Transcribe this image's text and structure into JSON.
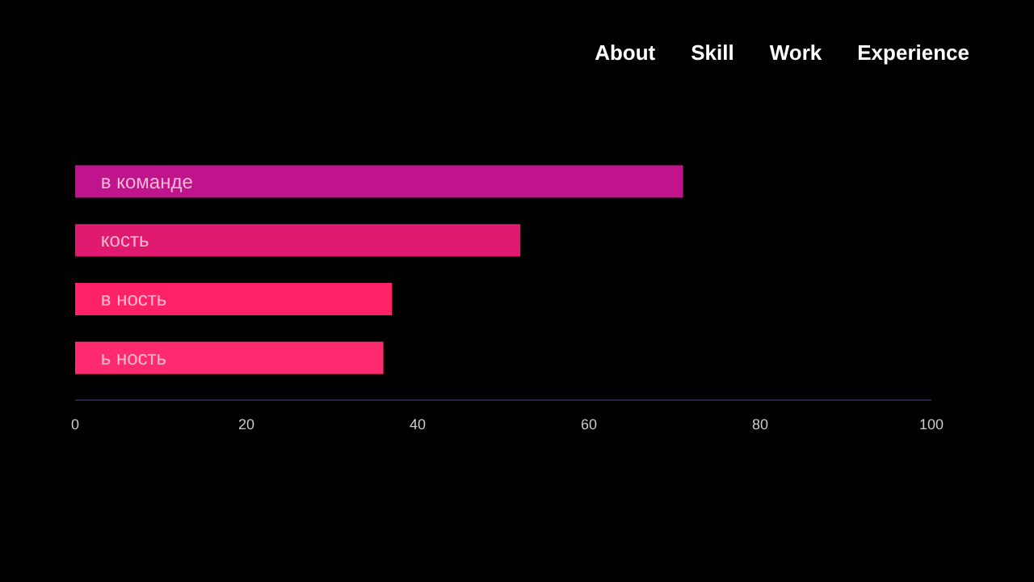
{
  "chart_data": {
    "type": "bar",
    "orientation": "horizontal",
    "categories": [
      "в   команде",
      "кость",
      "в ность",
      "ь ность"
    ],
    "values": [
      71,
      52,
      37,
      36
    ],
    "colors": [
      "#c0148c",
      "#e01a70",
      "#ff2266",
      "#ff2a70"
    ],
    "xlim": [
      0,
      100
    ],
    "xticks": [
      0,
      20,
      40,
      60,
      80,
      100
    ],
    "grid": false,
    "annotations": [
      "About",
      "Skill",
      "Work",
      "Experience"
    ]
  }
}
